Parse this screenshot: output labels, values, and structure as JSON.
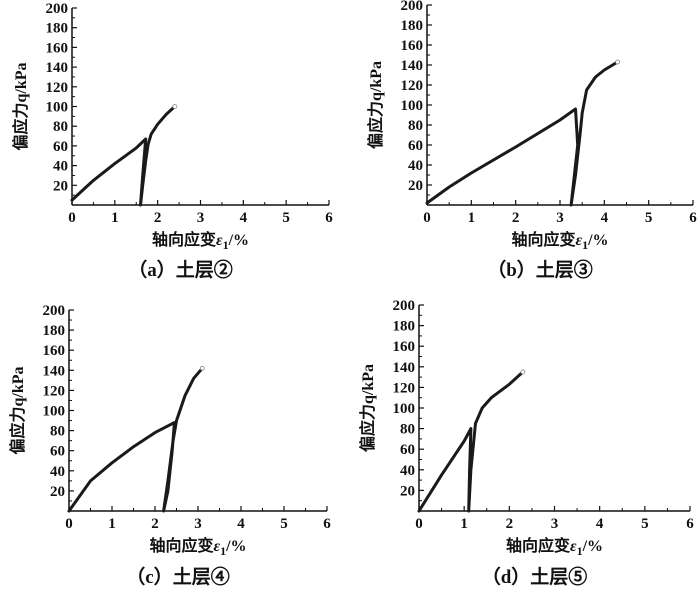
{
  "chart_data": [
    {
      "type": "line",
      "caption": "（a）土层②",
      "xlabel": {
        "main": "轴向应变",
        "symbol": "ε",
        "sub": "1",
        "unit": "/%"
      },
      "ylabel": "偏应力q/kPa",
      "xlim": [
        0,
        6
      ],
      "ylim": [
        0,
        200
      ],
      "xticks": [
        "0",
        "1",
        "2",
        "3",
        "4",
        "5",
        "6"
      ],
      "yticks": [
        "20",
        "40",
        "60",
        "80",
        "100",
        "120",
        "140",
        "160",
        "180",
        "200"
      ],
      "grid": false,
      "series": [
        {
          "x": [
            0,
            0.5,
            1,
            1.5,
            1.72,
            1.66,
            1.6,
            1.65,
            1.72,
            1.78,
            1.85,
            2.0,
            2.2,
            2.4
          ],
          "y": [
            5,
            25,
            42,
            58,
            67,
            35,
            0,
            20,
            45,
            62,
            72,
            82,
            92,
            100
          ]
        }
      ]
    },
    {
      "type": "line",
      "caption": "（b）土层③",
      "xlabel": {
        "main": "轴向应变",
        "symbol": "ε",
        "sub": "1",
        "unit": "/%"
      },
      "ylabel": "偏应力q/kPa",
      "xlim": [
        0,
        6
      ],
      "ylim": [
        0,
        200
      ],
      "xticks": [
        "0",
        "1",
        "2",
        "3",
        "4",
        "5",
        "6"
      ],
      "yticks": [
        "20",
        "40",
        "60",
        "80",
        "100",
        "120",
        "140",
        "160",
        "180",
        "200"
      ],
      "grid": false,
      "series": [
        {
          "x": [
            0,
            0.5,
            1,
            2,
            3,
            3.35,
            3.4,
            3.3,
            3.25,
            3.35,
            3.45,
            3.5,
            3.6,
            3.8,
            4.0,
            4.3
          ],
          "y": [
            2,
            18,
            32,
            58,
            85,
            96,
            60,
            20,
            0,
            30,
            70,
            92,
            115,
            128,
            135,
            143
          ]
        }
      ]
    },
    {
      "type": "line",
      "caption": "（c）土层④",
      "xlabel": {
        "main": "轴向应变",
        "symbol": "ε",
        "sub": "1",
        "unit": "/%"
      },
      "ylabel": "偏应力q/kPa",
      "xlim": [
        0,
        6
      ],
      "ylim": [
        0,
        200
      ],
      "xticks": [
        "0",
        "1",
        "2",
        "3",
        "4",
        "5",
        "6"
      ],
      "yticks": [
        "20",
        "40",
        "60",
        "80",
        "100",
        "120",
        "140",
        "160",
        "180",
        "200"
      ],
      "grid": false,
      "series": [
        {
          "x": [
            0,
            0.5,
            1,
            1.5,
            2,
            2.45,
            2.4,
            2.3,
            2.2,
            2.3,
            2.42,
            2.5,
            2.7,
            2.9,
            3.1
          ],
          "y": [
            0,
            30,
            48,
            64,
            78,
            88,
            60,
            20,
            0,
            30,
            70,
            90,
            115,
            132,
            142
          ]
        }
      ]
    },
    {
      "type": "line",
      "caption": "（d）土层⑤",
      "xlabel": {
        "main": "轴向应变",
        "symbol": "ε",
        "sub": "1",
        "unit": "/%"
      },
      "ylabel": "偏应力q/kPa",
      "xlim": [
        0,
        6
      ],
      "ylim": [
        0,
        200
      ],
      "xticks": [
        "0",
        "1",
        "2",
        "3",
        "4",
        "5",
        "6"
      ],
      "yticks": [
        "20",
        "40",
        "60",
        "80",
        "100",
        "120",
        "140",
        "160",
        "180",
        "200"
      ],
      "grid": false,
      "series": [
        {
          "x": [
            0,
            0.5,
            1,
            1.15,
            1.12,
            1.1,
            1.15,
            1.25,
            1.4,
            1.6,
            2.0,
            2.3
          ],
          "y": [
            0,
            35,
            68,
            80,
            40,
            0,
            40,
            85,
            100,
            110,
            123,
            135
          ]
        }
      ]
    }
  ],
  "colors": {
    "line": "#1a1a1a",
    "axis": "#111111"
  }
}
